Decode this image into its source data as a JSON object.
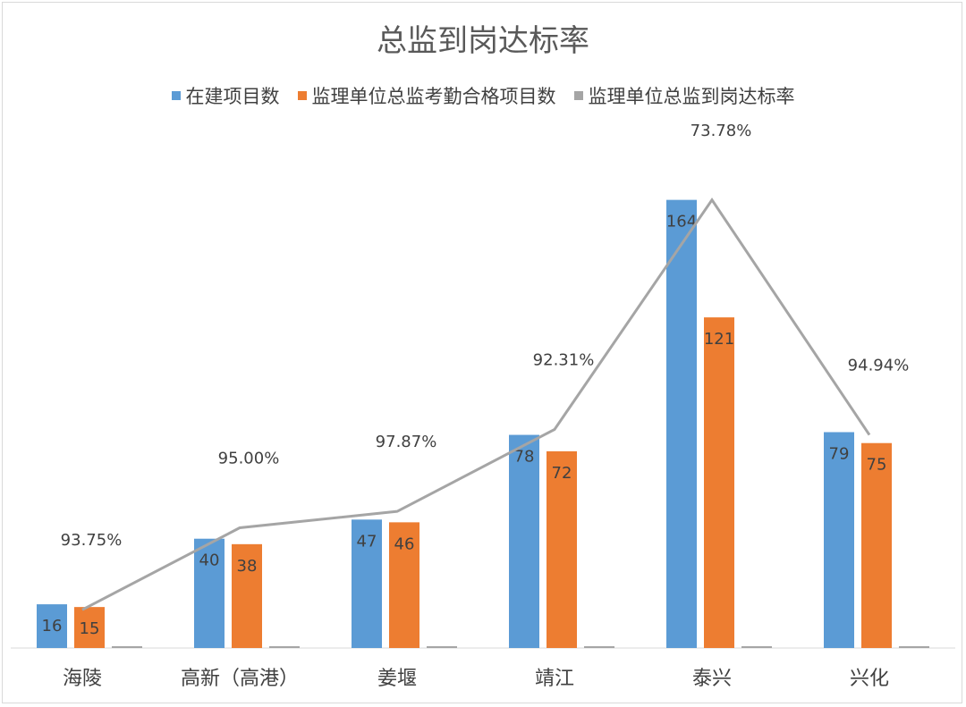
{
  "chart_data": {
    "type": "bar",
    "title": "总监到岗达标率",
    "categories": [
      "海陵",
      "高新（高港）",
      "姜堰",
      "靖江",
      "泰兴",
      "兴化"
    ],
    "series": [
      {
        "name": "在建项目数",
        "color": "#5b9bd5",
        "values": [
          16,
          40,
          47,
          78,
          164,
          79
        ]
      },
      {
        "name": "监理单位总监考勤合格项目数",
        "color": "#ed7d31",
        "values": [
          15,
          38,
          46,
          72,
          121,
          75
        ]
      },
      {
        "name": "监理单位总监到岗达标率",
        "color": "#a5a5a5",
        "values": [
          0.9375,
          0.95,
          0.9787,
          0.9231,
          0.7378,
          0.9494
        ]
      }
    ],
    "rate_labels": [
      "93.75%",
      "95.00%",
      "97.87%",
      "92.31%",
      "73.78%",
      "94.94%"
    ],
    "line_values": [
      14,
      44,
      50,
      80,
      164,
      78
    ],
    "ylim": [
      0,
      175
    ],
    "xlabel": "",
    "ylabel": "",
    "legend_position": "top"
  }
}
